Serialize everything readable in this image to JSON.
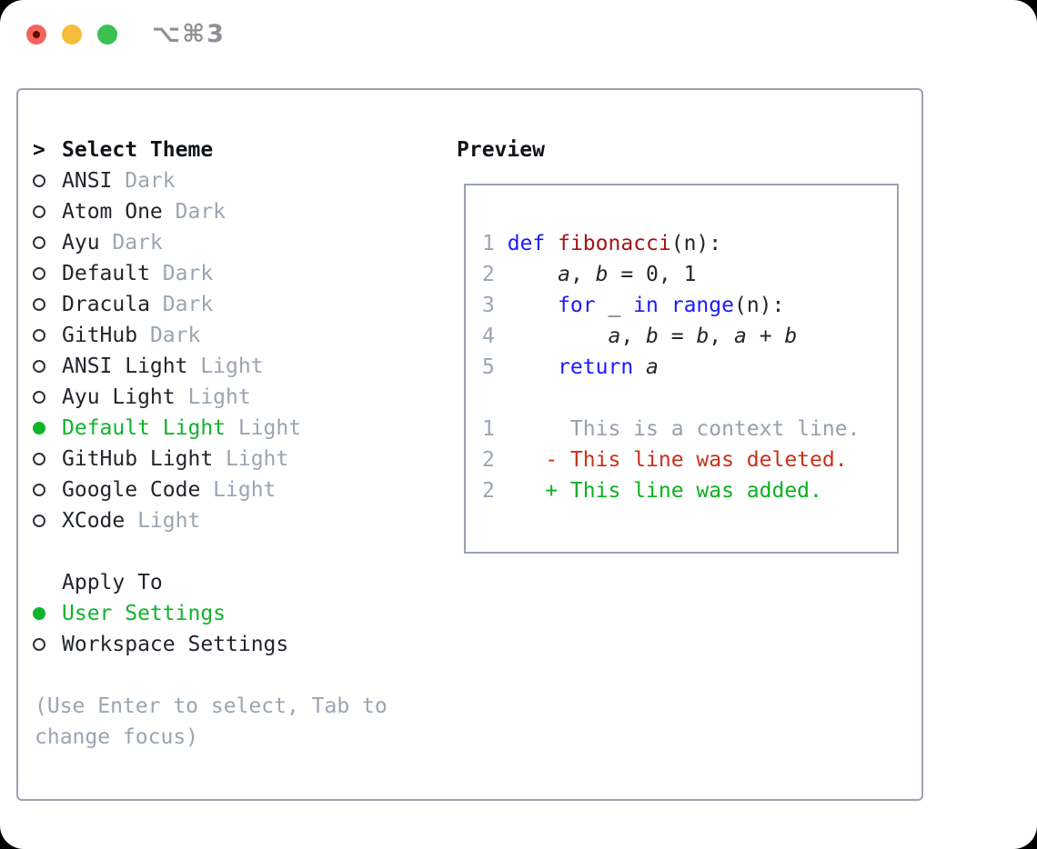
{
  "window": {
    "title_shortcut": "⌥⌘3"
  },
  "colors": {
    "green": "#0fb42c",
    "keyword_blue": "#1b1aff",
    "function_red": "#a31515",
    "deleted_red": "#c9301b",
    "added_green": "#0ab11f",
    "muted_gray": "#9aa5b2",
    "context_gray": "#97a1ac",
    "border_gray": "#9aa3ae",
    "text_black": "#22262b",
    "traffic_red": "#f4635b",
    "traffic_red_dot": "#5f0e07",
    "traffic_yellow": "#f6bd3a",
    "traffic_green": "#3bc152",
    "title_gray": "#8d9095"
  },
  "theme_panel": {
    "header": {
      "cursor": ">",
      "label": "Select Theme"
    },
    "themes": [
      {
        "name": "ANSI",
        "variant": "Dark",
        "selected": false
      },
      {
        "name": "Atom One",
        "variant": "Dark",
        "selected": false
      },
      {
        "name": "Ayu",
        "variant": "Dark",
        "selected": false
      },
      {
        "name": "Default",
        "variant": "Dark",
        "selected": false
      },
      {
        "name": "Dracula",
        "variant": "Dark",
        "selected": false
      },
      {
        "name": "GitHub",
        "variant": "Dark",
        "selected": false
      },
      {
        "name": "ANSI Light",
        "variant": "Light",
        "selected": false
      },
      {
        "name": "Ayu Light",
        "variant": "Light",
        "selected": false
      },
      {
        "name": "Default Light",
        "variant": "Light",
        "selected": true
      },
      {
        "name": "GitHub Light",
        "variant": "Light",
        "selected": false
      },
      {
        "name": "Google Code",
        "variant": "Light",
        "selected": false
      },
      {
        "name": "XCode",
        "variant": "Light",
        "selected": false
      }
    ],
    "apply_to": {
      "label": "Apply To",
      "options": [
        {
          "name": "User Settings",
          "selected": true
        },
        {
          "name": "Workspace Settings",
          "selected": false
        }
      ]
    },
    "hint_lines": [
      "(Use Enter to select, Tab to",
      "change focus)"
    ]
  },
  "preview": {
    "title": "Preview",
    "lines": [
      {
        "n": "1",
        "segs": [
          {
            "t": "def",
            "c": "keyword"
          },
          {
            "t": " "
          },
          {
            "t": "fibonacci",
            "c": "function"
          },
          {
            "t": "(n):"
          }
        ]
      },
      {
        "n": "2",
        "segs": [
          {
            "t": "    "
          },
          {
            "t": "a",
            "i": true
          },
          {
            "t": ", "
          },
          {
            "t": "b",
            "i": true
          },
          {
            "t": " = 0, 1"
          }
        ]
      },
      {
        "n": "3",
        "segs": [
          {
            "t": "    "
          },
          {
            "t": "for",
            "c": "keyword"
          },
          {
            "t": " _ "
          },
          {
            "t": "in",
            "c": "keyword"
          },
          {
            "t": " "
          },
          {
            "t": "range",
            "c": "keyword"
          },
          {
            "t": "(n):"
          }
        ]
      },
      {
        "n": "4",
        "segs": [
          {
            "t": "        "
          },
          {
            "t": "a",
            "i": true
          },
          {
            "t": ", "
          },
          {
            "t": "b",
            "i": true
          },
          {
            "t": " = "
          },
          {
            "t": "b",
            "i": true
          },
          {
            "t": ", "
          },
          {
            "t": "a",
            "i": true
          },
          {
            "t": " + "
          },
          {
            "t": "b",
            "i": true
          }
        ]
      },
      {
        "n": "5",
        "segs": [
          {
            "t": "    "
          },
          {
            "t": "return",
            "c": "keyword"
          },
          {
            "t": " "
          },
          {
            "t": "a",
            "i": true
          }
        ]
      },
      {
        "n": "",
        "segs": []
      },
      {
        "n": "1",
        "segs": [
          {
            "t": "     This is a context line.",
            "c": "context"
          }
        ]
      },
      {
        "n": "2",
        "segs": [
          {
            "t": "   - This line was deleted.",
            "c": "deleted"
          }
        ]
      },
      {
        "n": "2",
        "segs": [
          {
            "t": "   + This line was added.",
            "c": "added"
          }
        ]
      }
    ]
  }
}
